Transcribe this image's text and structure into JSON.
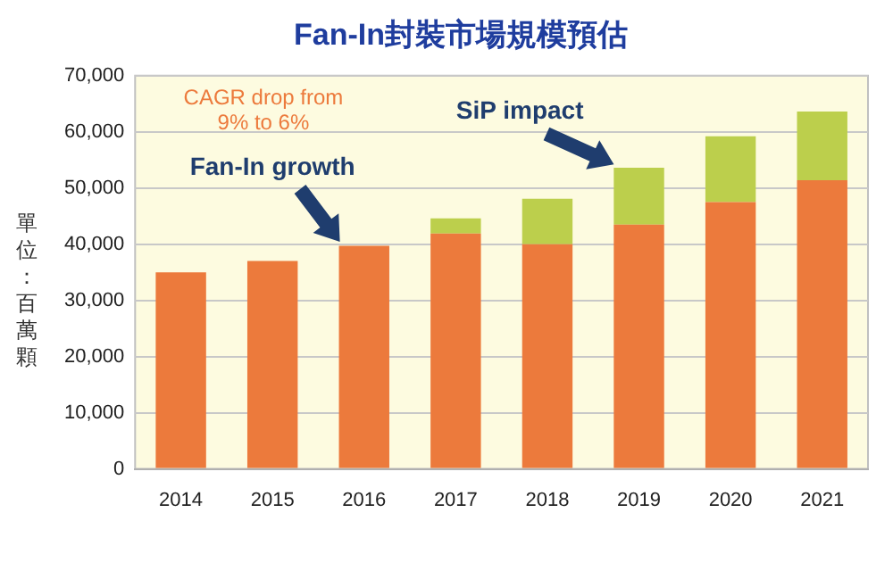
{
  "chart_data": {
    "type": "bar",
    "title": "Fan-In封裝市場規模預估",
    "ylabel": "單位：百萬顆",
    "categories": [
      "2014",
      "2015",
      "2016",
      "2017",
      "2018",
      "2019",
      "2020",
      "2021"
    ],
    "series": [
      {
        "color": "#ec7a3c",
        "values": [
          35000,
          37000,
          39700,
          41900,
          40000,
          43500,
          47500,
          51400
        ]
      },
      {
        "color": "#bccf4c",
        "values": [
          0,
          0,
          0,
          2700,
          8100,
          10100,
          11700,
          12200
        ]
      }
    ],
    "stacked": true,
    "ylim": [
      0,
      70000
    ],
    "yticks": [
      0,
      {
        "value": 10000,
        "label": "10,000"
      },
      {
        "value": 20000,
        "label": "20,000"
      },
      {
        "value": 30000,
        "label": "30,000"
      },
      {
        "value": 40000,
        "label": "40,000"
      },
      {
        "value": 50000,
        "label": "50,000"
      },
      {
        "value": 60000,
        "label": "60,000"
      },
      {
        "value": 70000,
        "label": "70,000"
      }
    ],
    "grid": "y",
    "legend": false,
    "annotations": [
      "CAGR drop from\n9% to 6%",
      {
        "text": "Fan-In growth",
        "x": "2016",
        "y": 39700
      },
      {
        "text": "SiP impact",
        "x": "2019",
        "y": 53600
      }
    ]
  }
}
